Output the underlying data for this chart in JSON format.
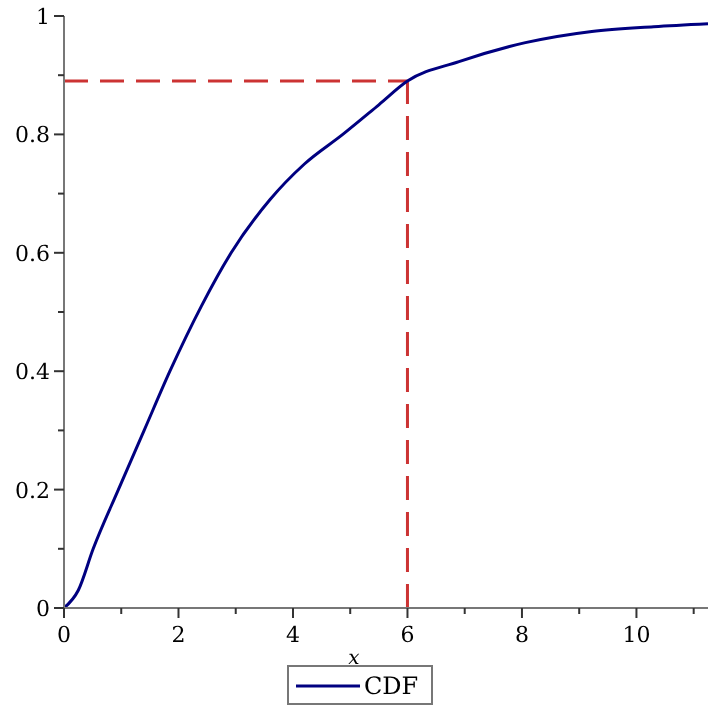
{
  "chart_data": {
    "type": "line",
    "xlabel": "x",
    "xlim": [
      0,
      11.25
    ],
    "xticks": [
      0,
      {
        "value": 1,
        "label": null
      },
      2,
      {
        "value": 3,
        "label": null
      },
      4,
      {
        "value": 5,
        "label": null
      },
      6,
      {
        "value": 7,
        "label": null
      },
      8,
      {
        "value": 9,
        "label": null
      },
      10,
      {
        "value": 11,
        "label": null
      }
    ],
    "ylim": [
      0,
      1
    ],
    "yticks": [
      0,
      {
        "value": 0.1,
        "label": null
      },
      0.2,
      {
        "value": 0.3,
        "label": null
      },
      0.4,
      {
        "value": 0.5,
        "label": null
      },
      0.6,
      {
        "value": 0.7,
        "label": null
      },
      0.8,
      {
        "value": 0.9,
        "label": null
      },
      1
    ],
    "x": [
      0,
      0.25,
      0.51,
      0.95,
      1.4,
      1.85,
      2.4,
      2.92,
      3.6,
      4.2,
      4.87,
      5.5,
      6,
      6.9,
      8.06,
      9.22,
      10.3,
      11.25
    ],
    "series": [
      {
        "name": "CDF",
        "color": "#000080",
        "values": [
          0,
          0.03,
          0.1,
          0.2,
          0.3,
          0.4,
          0.51,
          0.6,
          0.69,
          0.75,
          0.8,
          0.85,
          0.89,
          0.923,
          0.955,
          0.974,
          0.982,
          0.987
        ]
      }
    ],
    "ref_lines": [
      {
        "axis": "y",
        "value": 0.89,
        "color": "#cc3333",
        "line_style": "dashed"
      },
      {
        "axis": "x",
        "value": 6,
        "color": "#cc3333",
        "line_style": "dashed"
      }
    ],
    "legend": "bottom",
    "line_style": "solid",
    "grid": false
  }
}
